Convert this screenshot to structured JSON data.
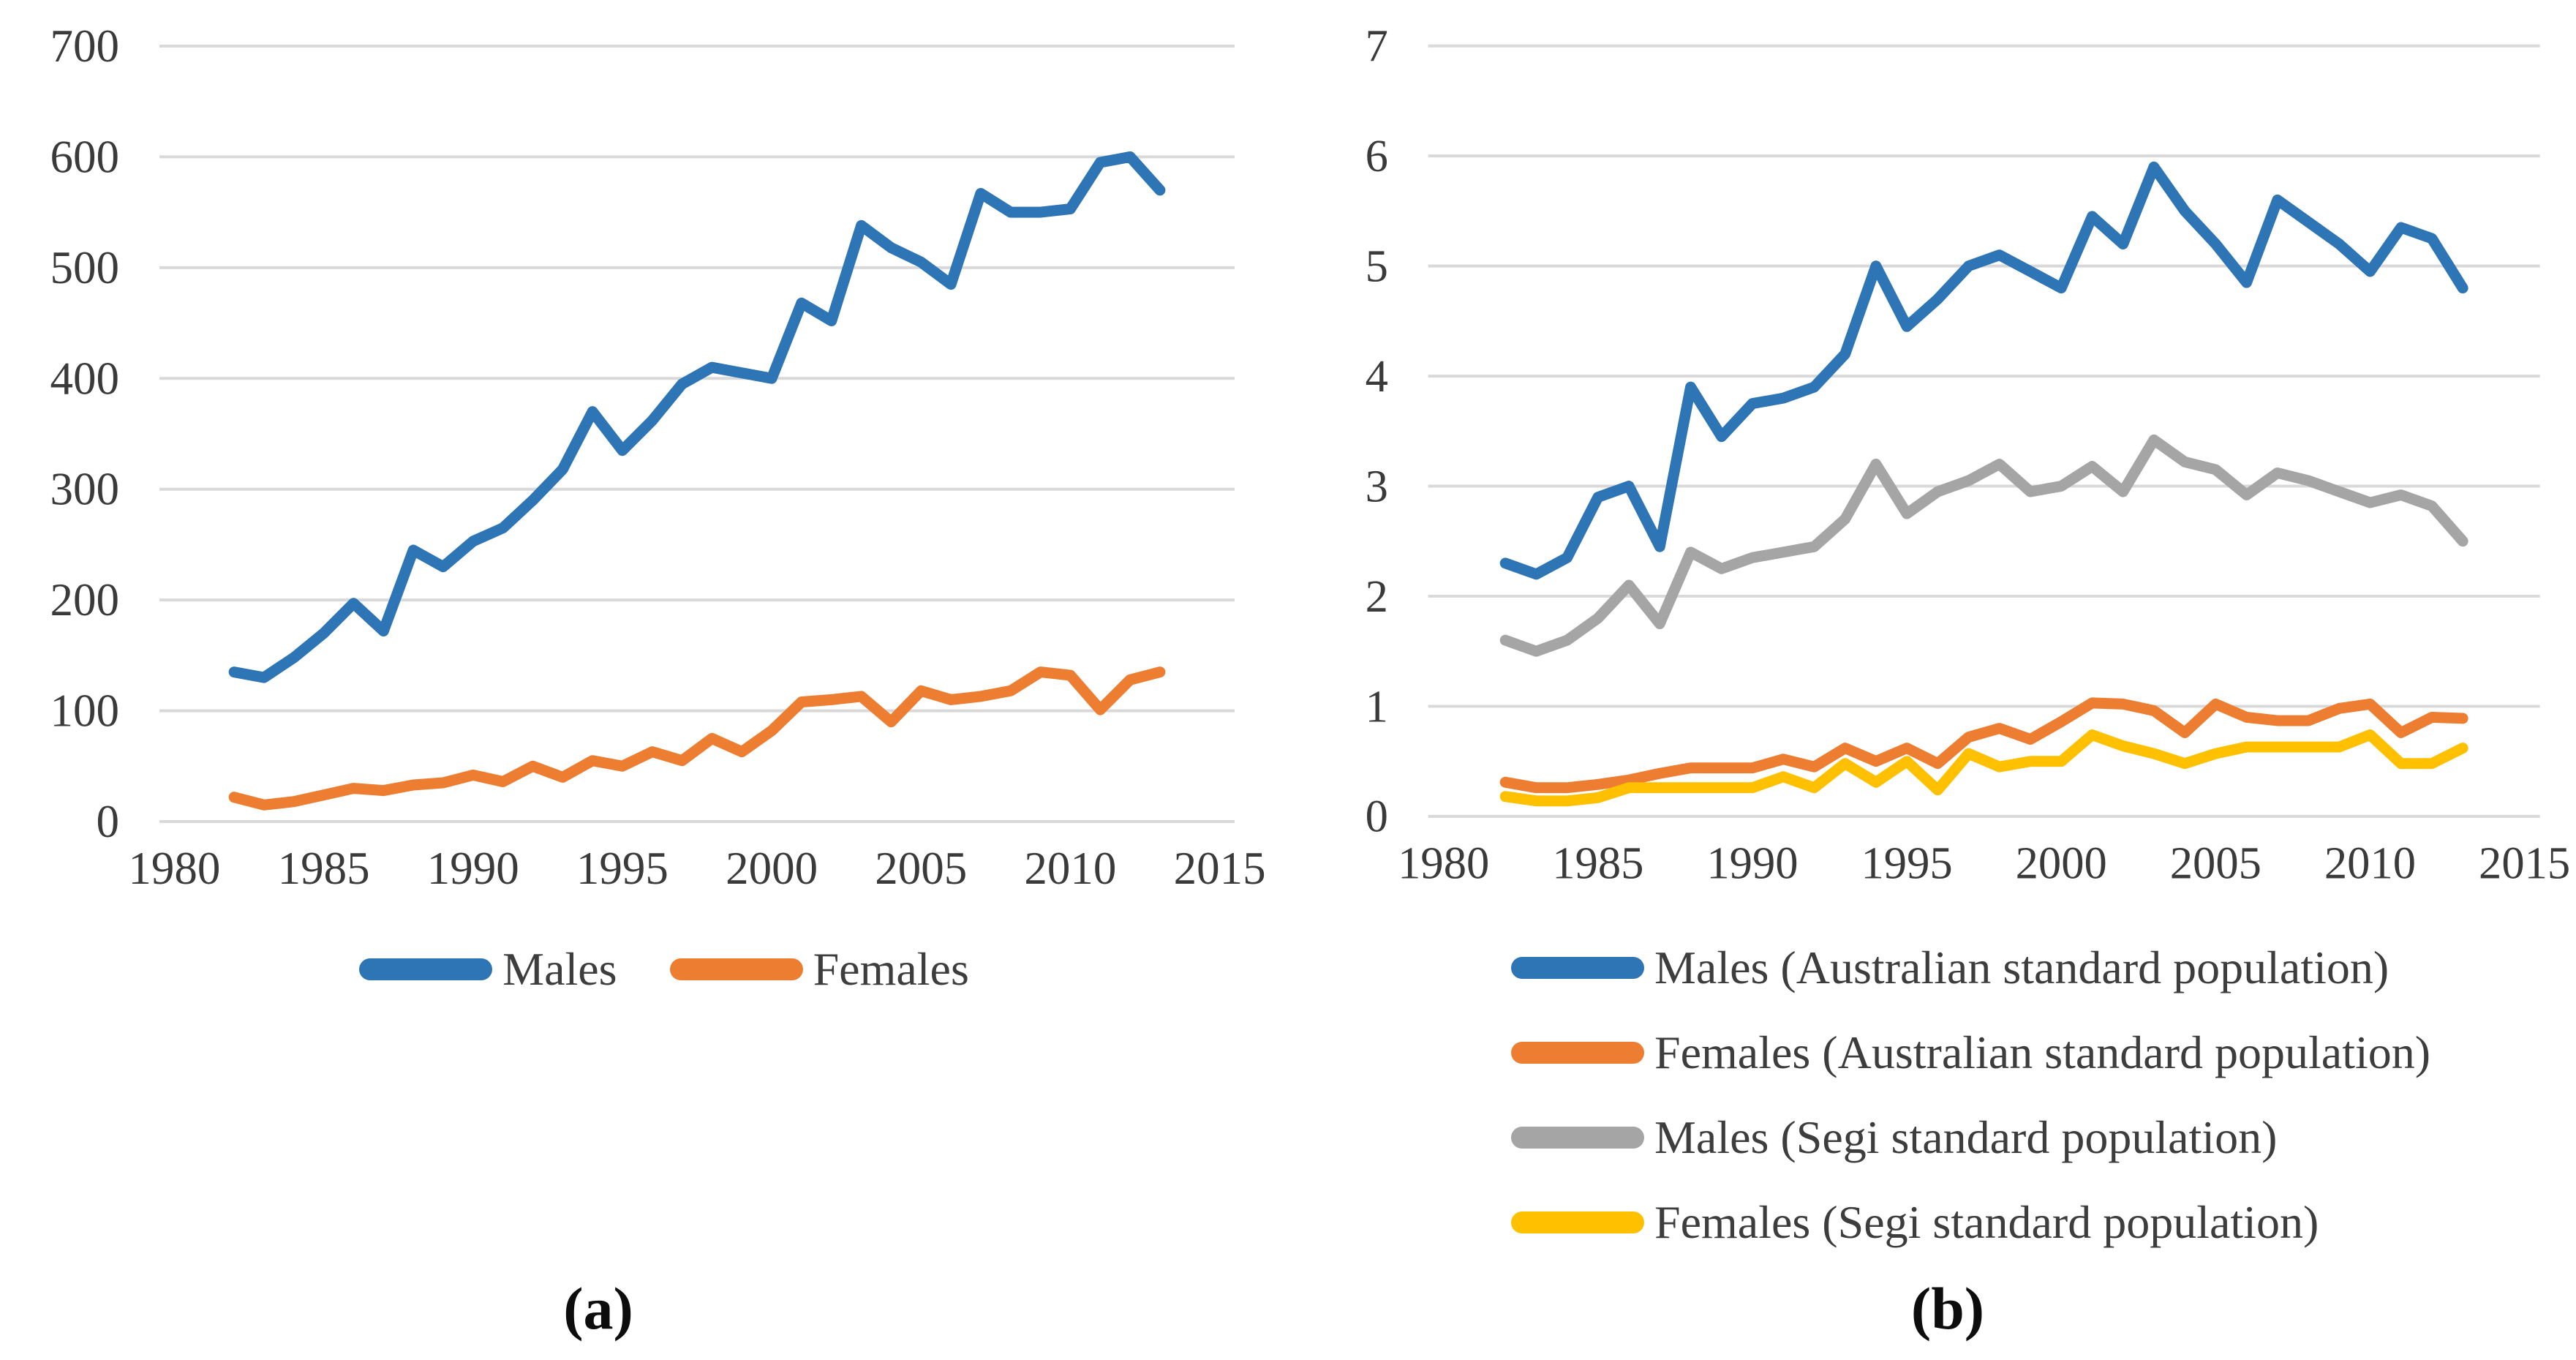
{
  "styles": {
    "grid_color": "#D9D9D9",
    "tick_color": "#3A3A3A",
    "background": "#FFFFFF",
    "blue": "#2E75B6",
    "orange": "#ED7D31",
    "gray": "#A5A5A5",
    "yellow": "#FFC000"
  },
  "chart_data": [
    {
      "id": "a",
      "type": "line",
      "caption": "(a)",
      "title": "",
      "xlabel": "",
      "ylabel": "",
      "grid": "horizontal",
      "legend_position": "bottom-horizontal",
      "xlim": [
        1980,
        2015
      ],
      "ylim": [
        0,
        700
      ],
      "xticks": [
        1980,
        1985,
        1990,
        1995,
        2000,
        2005,
        2010,
        2015
      ],
      "yticks": [
        0,
        100,
        200,
        300,
        400,
        500,
        600,
        700
      ],
      "x": [
        1982,
        1983,
        1984,
        1985,
        1986,
        1987,
        1988,
        1989,
        1990,
        1991,
        1992,
        1993,
        1994,
        1995,
        1996,
        1997,
        1998,
        1999,
        2000,
        2001,
        2002,
        2003,
        2004,
        2005,
        2006,
        2007,
        2008,
        2009,
        2010,
        2011,
        2012,
        2013
      ],
      "series": [
        {
          "name": "Males",
          "color": "#2E75B6",
          "values": [
            135,
            130,
            148,
            170,
            197,
            172,
            245,
            230,
            253,
            265,
            290,
            318,
            370,
            335,
            362,
            395,
            410,
            405,
            400,
            468,
            452,
            538,
            518,
            505,
            485,
            567,
            550,
            550,
            553,
            595,
            600,
            570
          ]
        },
        {
          "name": "Females",
          "color": "#ED7D31",
          "values": [
            22,
            15,
            18,
            24,
            30,
            28,
            33,
            35,
            42,
            36,
            50,
            40,
            55,
            50,
            63,
            55,
            75,
            63,
            82,
            108,
            110,
            113,
            90,
            118,
            110,
            113,
            118,
            135,
            132,
            101,
            128,
            135
          ]
        }
      ]
    },
    {
      "id": "b",
      "type": "line",
      "caption": "(b)",
      "title": "",
      "xlabel": "",
      "ylabel": "",
      "grid": "horizontal",
      "legend_position": "bottom-vertical",
      "xlim": [
        1980,
        2015
      ],
      "ylim": [
        0,
        7
      ],
      "xticks": [
        1980,
        1985,
        1990,
        1995,
        2000,
        2005,
        2010,
        2015
      ],
      "yticks": [
        0,
        1,
        2,
        3,
        4,
        5,
        6,
        7
      ],
      "x": [
        1982,
        1983,
        1984,
        1985,
        1986,
        1987,
        1988,
        1989,
        1990,
        1991,
        1992,
        1993,
        1994,
        1995,
        1996,
        1997,
        1998,
        1999,
        2000,
        2001,
        2002,
        2003,
        2004,
        2005,
        2006,
        2007,
        2008,
        2009,
        2010,
        2011,
        2012,
        2013
      ],
      "series": [
        {
          "name": "Males (Australian standard population)",
          "color": "#2E75B6",
          "values": [
            2.3,
            2.2,
            2.35,
            2.9,
            3.0,
            2.45,
            3.9,
            3.45,
            3.75,
            3.8,
            3.9,
            4.2,
            5.0,
            4.45,
            4.7,
            5.0,
            5.1,
            4.95,
            4.8,
            5.45,
            5.2,
            5.9,
            5.5,
            5.2,
            4.85,
            5.6,
            5.4,
            5.2,
            4.95,
            5.35,
            5.25,
            4.8
          ]
        },
        {
          "name": "Females (Australian standard population)",
          "color": "#ED7D31",
          "values": [
            0.31,
            0.26,
            0.26,
            0.29,
            0.33,
            0.39,
            0.44,
            0.44,
            0.44,
            0.52,
            0.45,
            0.62,
            0.5,
            0.62,
            0.48,
            0.72,
            0.8,
            0.7,
            0.86,
            1.03,
            1.02,
            0.96,
            0.76,
            1.02,
            0.9,
            0.87,
            0.87,
            0.98,
            1.02,
            0.76,
            0.9,
            0.89
          ]
        },
        {
          "name": "Males (Segi standard population)",
          "color": "#A5A5A5",
          "values": [
            1.6,
            1.5,
            1.6,
            1.8,
            2.1,
            1.75,
            2.4,
            2.25,
            2.35,
            2.4,
            2.45,
            2.7,
            3.2,
            2.75,
            2.95,
            3.05,
            3.2,
            2.95,
            3.0,
            3.18,
            2.95,
            3.42,
            3.22,
            3.15,
            2.92,
            3.12,
            3.05,
            2.95,
            2.85,
            2.92,
            2.82,
            2.5
          ]
        },
        {
          "name": "Females (Segi standard population)",
          "color": "#FFC000",
          "values": [
            0.18,
            0.14,
            0.14,
            0.17,
            0.26,
            0.26,
            0.26,
            0.26,
            0.26,
            0.36,
            0.26,
            0.48,
            0.31,
            0.5,
            0.24,
            0.57,
            0.45,
            0.5,
            0.5,
            0.74,
            0.64,
            0.57,
            0.48,
            0.57,
            0.63,
            0.63,
            0.63,
            0.63,
            0.74,
            0.48,
            0.48,
            0.62
          ]
        }
      ]
    }
  ]
}
